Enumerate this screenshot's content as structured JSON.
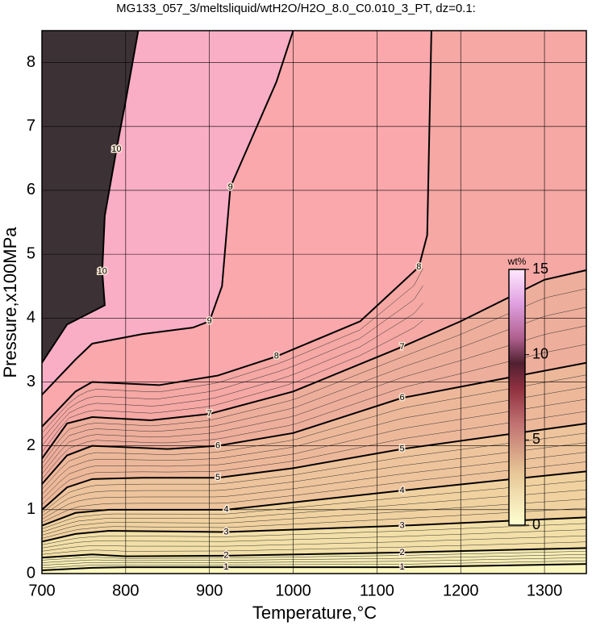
{
  "chart_data": {
    "type": "contour",
    "title": "MG133_057_3/meltsliquid/wtH2O/H2O_8.0_C0.010_3_PT, dz=0.1:",
    "x_label": "Temperature,°C",
    "y_label": "Pressure,x100MPa",
    "xlim": [
      700,
      1350
    ],
    "ylim": [
      0,
      8.5
    ],
    "xticks": [
      700,
      800,
      900,
      1000,
      1100,
      1200,
      1300
    ],
    "yticks": [
      0,
      1,
      2,
      3,
      4,
      5,
      6,
      7,
      8
    ],
    "grid": true,
    "base_fill": "#fdf7bf",
    "contours": [
      {
        "level": 1,
        "fill": "#f6ecb4",
        "T": [
          700,
          760,
          800,
          920,
          1130,
          1350
        ],
        "P": [
          0.05,
          0.09,
          0.1,
          0.1,
          0.1,
          0.15
        ]
      },
      {
        "level": 2,
        "fill": "#f3e0a8",
        "T": [
          700,
          760,
          800,
          920,
          1130,
          1350
        ],
        "P": [
          0.25,
          0.3,
          0.27,
          0.28,
          0.33,
          0.4
        ]
      },
      {
        "level": 3,
        "fill": "#f0d2a0",
        "T": [
          700,
          740,
          780,
          920,
          1130,
          1350
        ],
        "P": [
          0.5,
          0.62,
          0.67,
          0.65,
          0.75,
          0.88
        ]
      },
      {
        "level": 4,
        "fill": "#eec49c",
        "T": [
          700,
          740,
          780,
          920,
          1130,
          1350
        ],
        "P": [
          0.75,
          0.95,
          1.0,
          1.0,
          1.3,
          1.6
        ]
      },
      {
        "level": 5,
        "fill": "#edb89a",
        "T": [
          700,
          730,
          760,
          820,
          910,
          1000,
          1130,
          1350
        ],
        "P": [
          1.0,
          1.35,
          1.48,
          1.5,
          1.5,
          1.65,
          1.95,
          2.35
        ]
      },
      {
        "level": 6,
        "fill": "#eeae9c",
        "T": [
          700,
          730,
          760,
          850,
          910,
          1000,
          1130,
          1250,
          1350
        ],
        "P": [
          1.4,
          1.85,
          2.0,
          1.95,
          2.0,
          2.2,
          2.75,
          3.05,
          3.3
        ]
      },
      {
        "level": 7,
        "fill": "#f5a8a4",
        "T": [
          700,
          730,
          760,
          830,
          900,
          1000,
          1130,
          1200,
          1300,
          1350
        ],
        "P": [
          1.8,
          2.35,
          2.45,
          2.4,
          2.5,
          2.85,
          3.55,
          3.95,
          4.6,
          4.75
        ]
      },
      {
        "level": 8,
        "fill": "#fba8ac",
        "T": [
          700,
          740,
          760,
          840,
          910,
          980,
          1080,
          1150,
          1160,
          1165
        ],
        "P": [
          2.3,
          2.85,
          3.0,
          2.95,
          3.1,
          3.4,
          3.95,
          4.8,
          5.3,
          8.5
        ]
      },
      {
        "level": 9,
        "fill": "#f9aec6",
        "T": [
          700,
          740,
          760,
          820,
          880,
          900,
          915,
          925,
          950,
          980,
          1000
        ],
        "P": [
          2.8,
          3.35,
          3.6,
          3.75,
          3.85,
          3.95,
          4.5,
          6.05,
          6.8,
          7.7,
          8.5
        ]
      },
      {
        "level": 10,
        "fill": "#3c3236",
        "T": [
          700,
          730,
          760,
          775,
          772,
          775,
          789,
          800,
          815
        ],
        "P": [
          3.3,
          3.9,
          4.1,
          4.2,
          4.73,
          5.6,
          6.64,
          7.4,
          8.5
        ]
      }
    ],
    "colorbar": {
      "label": "wt%",
      "lim": [
        0,
        15
      ],
      "ticks": [
        0,
        5,
        10,
        15
      ],
      "colormap": [
        {
          "value": 0,
          "color": "#ffffd0"
        },
        {
          "value": 3,
          "color": "#e8c898"
        },
        {
          "value": 6,
          "color": "#c07070"
        },
        {
          "value": 8,
          "color": "#903040"
        },
        {
          "value": 9.5,
          "color": "#502030"
        },
        {
          "value": 11,
          "color": "#b06090"
        },
        {
          "value": 13,
          "color": "#e0a0e0"
        },
        {
          "value": 15,
          "color": "#ffe8ff"
        }
      ]
    }
  }
}
